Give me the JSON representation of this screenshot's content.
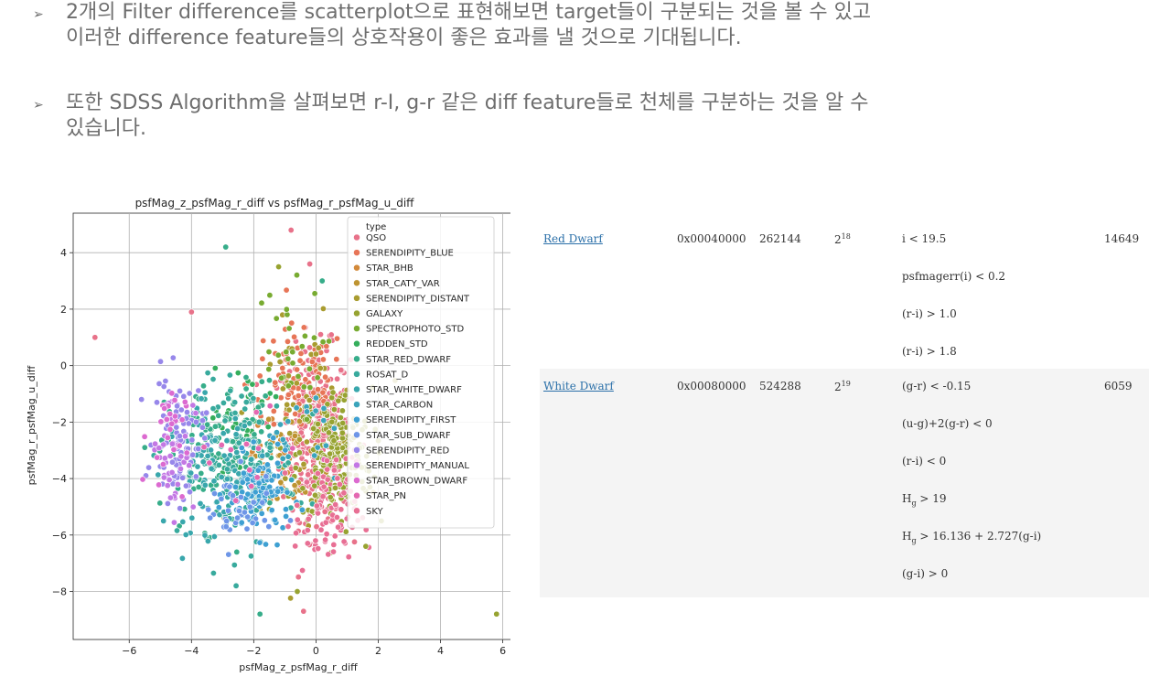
{
  "bullets": [
    {
      "marker": "➢",
      "lines": [
        "2개의 Filter difference를 scatterplot으로 표현해보면 target들이 구분되는 것을 볼 수 있고",
        "이러한 difference feature들의 상호작용이 좋은 효과를 낼 것으로 기대됩니다."
      ]
    },
    {
      "marker": "➢",
      "lines": [
        "또한 SDSS Algorithm을 살펴보면 r-I, g-r 같은 diff feature들로 천체를 구분하는 것을 알 수",
        "있습니다."
      ]
    }
  ],
  "chart_data": {
    "type": "scatter",
    "title": "psfMag_z_psfMag_r_diff vs psfMag_r_psfMag_u_diff",
    "xlabel": "psfMag_z_psfMag_r_diff",
    "ylabel": "psfMag_r_psfMag_u_diff",
    "xlim": [
      -7.8,
      6.6
    ],
    "ylim": [
      -9.7,
      5.4
    ],
    "xticks": [
      -6,
      -4,
      -2,
      0,
      2,
      4,
      6
    ],
    "yticks": [
      -8,
      -6,
      -4,
      -2,
      0,
      2,
      4
    ],
    "grid": true,
    "legend_title": "type",
    "legend_placement": "top-right",
    "series": [
      {
        "name": "QSO",
        "color": "#e8728a",
        "cx": 0.0,
        "cy": -2.4,
        "sx": 0.55,
        "sy": 1.5,
        "n": 320
      },
      {
        "name": "SERENDIPITY_BLUE",
        "color": "#e77557",
        "cx": -0.6,
        "cy": -0.6,
        "sx": 0.8,
        "sy": 1.0,
        "n": 90
      },
      {
        "name": "STAR_BHB",
        "color": "#d38a3b",
        "cx": -1.6,
        "cy": -3.6,
        "sx": 0.6,
        "sy": 0.7,
        "n": 40
      },
      {
        "name": "STAR_CATY_VAR",
        "color": "#be9432",
        "cx": -0.6,
        "cy": -3.0,
        "sx": 0.6,
        "sy": 1.0,
        "n": 40
      },
      {
        "name": "SERENDIPITY_DISTANT",
        "color": "#a99c30",
        "cx": -0.3,
        "cy": -1.8,
        "sx": 0.9,
        "sy": 1.6,
        "n": 60
      },
      {
        "name": "GALAXY",
        "color": "#97a331",
        "cx": 0.6,
        "cy": -3.2,
        "sx": 0.6,
        "sy": 1.2,
        "n": 200
      },
      {
        "name": "SPECTROPHOTO_STD",
        "color": "#78ab31",
        "cx": -1.0,
        "cy": 0.4,
        "sx": 0.6,
        "sy": 1.2,
        "n": 30
      },
      {
        "name": "REDDEN_STD",
        "color": "#35ae5c",
        "cx": -2.4,
        "cy": -2.2,
        "sx": 0.5,
        "sy": 1.1,
        "n": 40
      },
      {
        "name": "STAR_RED_DWARF",
        "color": "#37ad8a",
        "cx": -3.0,
        "cy": -3.2,
        "sx": 0.9,
        "sy": 1.3,
        "n": 150
      },
      {
        "name": "ROSAT_D",
        "color": "#38aa9d",
        "cx": -2.2,
        "cy": -3.4,
        "sx": 0.8,
        "sy": 1.4,
        "n": 120
      },
      {
        "name": "STAR_WHITE_DWARF",
        "color": "#39a7ac",
        "cx": -3.4,
        "cy": -3.6,
        "sx": 0.7,
        "sy": 1.1,
        "n": 80
      },
      {
        "name": "STAR_CARBON",
        "color": "#3ba4bb",
        "cx": -0.8,
        "cy": -2.6,
        "sx": 0.7,
        "sy": 1.0,
        "n": 25
      },
      {
        "name": "SERENDIPITY_FIRST",
        "color": "#3ea0d2",
        "cx": -1.8,
        "cy": -4.6,
        "sx": 0.5,
        "sy": 0.7,
        "n": 110
      },
      {
        "name": "STAR_SUB_DWARF",
        "color": "#6e96e7",
        "cx": -2.6,
        "cy": -5.2,
        "sx": 0.6,
        "sy": 0.7,
        "n": 40
      },
      {
        "name": "SERENDIPITY_RED",
        "color": "#9787ea",
        "cx": -4.4,
        "cy": -2.6,
        "sx": 0.4,
        "sy": 1.1,
        "n": 90
      },
      {
        "name": "SERENDIPITY_MANUAL",
        "color": "#c378e4",
        "cx": -4.6,
        "cy": -3.0,
        "sx": 0.35,
        "sy": 1.1,
        "n": 40
      },
      {
        "name": "STAR_BROWN_DWARF",
        "color": "#dc6ad0",
        "cx": -4.8,
        "cy": -2.5,
        "sx": 0.3,
        "sy": 1.0,
        "n": 25
      },
      {
        "name": "STAR_PN",
        "color": "#e468b1",
        "cx": -2.6,
        "cy": -3.0,
        "sx": 1.0,
        "sy": 1.2,
        "n": 15
      },
      {
        "name": "SKY",
        "color": "#e86f94",
        "cx": 0.3,
        "cy": -5.4,
        "sx": 0.5,
        "sy": 1.0,
        "n": 80
      }
    ],
    "outliers": [
      {
        "x": -7.1,
        "y": 1.0,
        "series": "QSO"
      },
      {
        "x": -4.0,
        "y": 1.9,
        "series": "QSO"
      },
      {
        "x": -2.9,
        "y": 4.2,
        "series": "STAR_RED_DWARF"
      },
      {
        "x": -0.8,
        "y": 4.8,
        "series": "QSO"
      },
      {
        "x": -1.2,
        "y": 3.5,
        "series": "GALAXY"
      },
      {
        "x": 0.2,
        "y": 3.0,
        "series": "STAR_RED_DWARF"
      },
      {
        "x": -0.2,
        "y": 3.6,
        "series": "QSO"
      },
      {
        "x": 5.8,
        "y": -8.8,
        "series": "GALAXY"
      },
      {
        "x": -0.4,
        "y": -8.7,
        "series": "QSO"
      },
      {
        "x": -1.8,
        "y": -8.8,
        "series": "STAR_RED_DWARF"
      },
      {
        "x": -0.6,
        "y": -8.0,
        "series": "GALAXY"
      },
      {
        "x": -5.5,
        "y": -2.9,
        "series": "STAR_RED_DWARF"
      },
      {
        "x": 2.1,
        "y": -5.5,
        "series": "GALAXY"
      },
      {
        "x": 1.6,
        "y": -6.4,
        "series": "GALAXY"
      }
    ]
  },
  "table": {
    "rows": [
      {
        "name": "Red Dwarf",
        "hex": "0x00040000",
        "dec": "262144",
        "pow_base": "2",
        "pow_exp": "18",
        "conditions": [
          [
            {
              "t": "i < 19.5"
            }
          ],
          [
            {
              "t": "psfmagerr(i) < 0.2"
            }
          ],
          [
            {
              "t": "(r-i) > 1.0"
            }
          ],
          [
            {
              "t": "(r-i) > 1.8"
            }
          ]
        ],
        "count": "14649"
      },
      {
        "name": "White Dwarf",
        "hex": "0x00080000",
        "dec": "524288",
        "pow_base": "2",
        "pow_exp": "19",
        "conditions": [
          [
            {
              "t": "(g-r) < -0.15"
            }
          ],
          [
            {
              "t": "(u-g)+2(g-r) < 0"
            }
          ],
          [
            {
              "t": "(r-i) < 0"
            }
          ],
          [
            {
              "t": "H"
            },
            {
              "sub": "g"
            },
            {
              "t": " > 19"
            }
          ],
          [
            {
              "t": "H"
            },
            {
              "sub": "g"
            },
            {
              "t": " > 16.136 + 2.727(g-i)"
            }
          ],
          [
            {
              "t": "(g-i) > 0"
            }
          ]
        ],
        "count": "6059"
      }
    ]
  }
}
